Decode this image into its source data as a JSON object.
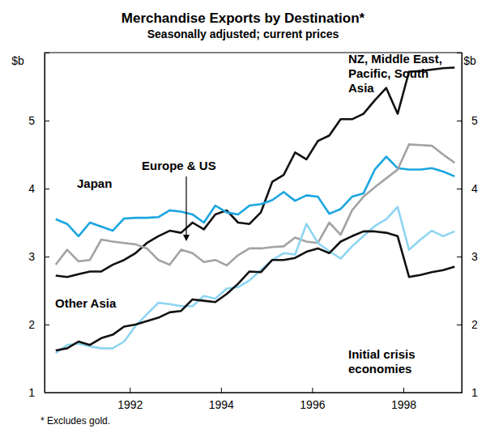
{
  "chart_data": {
    "type": "line",
    "title": "Merchandise Exports by Destination*",
    "subtitle": "Seasonally adjusted; current prices",
    "y_label": "$b",
    "footnote": "* Excludes gold.",
    "x": [
      1990.375,
      1990.625,
      1990.875,
      1991.125,
      1991.375,
      1991.625,
      1991.875,
      1992.125,
      1992.375,
      1992.625,
      1992.875,
      1993.125,
      1993.375,
      1993.625,
      1993.875,
      1994.125,
      1994.375,
      1994.625,
      1994.875,
      1995.125,
      1995.375,
      1995.625,
      1995.875,
      1996.125,
      1996.375,
      1996.625,
      1996.875,
      1997.125,
      1997.375,
      1997.625,
      1997.875,
      1998.125,
      1998.375,
      1998.625,
      1998.875,
      1999.125
    ],
    "xlim": [
      1990.13,
      1999.28
    ],
    "xticks": [
      1992,
      1994,
      1996,
      1998
    ],
    "ylim": [
      1,
      6
    ],
    "yticks": [
      1,
      2,
      3,
      4,
      5
    ],
    "grid": false,
    "series": [
      {
        "name": "NZ, Middle East, Pacific, South Asia",
        "color": "#111111",
        "values": [
          2.72,
          2.7,
          2.74,
          2.78,
          2.78,
          2.88,
          2.95,
          3.05,
          3.2,
          3.3,
          3.38,
          3.35,
          3.5,
          3.4,
          3.62,
          3.68,
          3.5,
          3.48,
          3.65,
          4.1,
          4.2,
          4.53,
          4.43,
          4.7,
          4.78,
          5.02,
          5.02,
          5.1,
          5.3,
          5.48,
          5.1,
          5.72,
          5.73,
          5.75,
          5.77,
          5.78
        ]
      },
      {
        "name": "Japan",
        "color": "#1ba6e0",
        "values": [
          3.55,
          3.48,
          3.3,
          3.5,
          3.44,
          3.38,
          3.56,
          3.57,
          3.57,
          3.58,
          3.68,
          3.66,
          3.62,
          3.5,
          3.75,
          3.65,
          3.62,
          3.75,
          3.77,
          3.83,
          3.95,
          3.82,
          3.9,
          3.88,
          3.63,
          3.7,
          3.88,
          3.93,
          4.28,
          4.47,
          4.3,
          4.28,
          4.28,
          4.3,
          4.25,
          4.18
        ]
      },
      {
        "name": "Europe & US",
        "color": "#a3a3a3",
        "values": [
          2.88,
          3.1,
          2.93,
          2.95,
          3.25,
          3.22,
          3.2,
          3.18,
          3.12,
          2.95,
          2.88,
          3.1,
          3.05,
          2.92,
          2.95,
          2.87,
          3.02,
          3.12,
          3.12,
          3.14,
          3.15,
          3.28,
          3.22,
          3.2,
          3.5,
          3.32,
          3.68,
          3.88,
          4.02,
          4.15,
          4.28,
          4.65,
          4.64,
          4.63,
          4.5,
          4.38
        ]
      },
      {
        "name": "Other Asia",
        "color": "#8ed5f2",
        "values": [
          1.58,
          1.7,
          1.72,
          1.68,
          1.65,
          1.65,
          1.75,
          1.98,
          2.15,
          2.32,
          2.3,
          2.27,
          2.27,
          2.42,
          2.38,
          2.53,
          2.55,
          2.65,
          2.8,
          2.95,
          3.05,
          3.03,
          3.48,
          3.2,
          3.08,
          2.97,
          3.15,
          3.3,
          3.45,
          3.55,
          3.73,
          3.1,
          3.25,
          3.38,
          3.3,
          3.37
        ]
      },
      {
        "name": "Initial crisis economies",
        "color": "#111111",
        "values": [
          1.62,
          1.65,
          1.75,
          1.7,
          1.8,
          1.85,
          1.97,
          2.0,
          2.05,
          2.1,
          2.18,
          2.2,
          2.37,
          2.35,
          2.33,
          2.45,
          2.6,
          2.78,
          2.77,
          2.95,
          2.95,
          2.98,
          3.07,
          3.12,
          3.05,
          3.22,
          3.3,
          3.37,
          3.37,
          3.35,
          3.3,
          2.7,
          2.73,
          2.77,
          2.8,
          2.85
        ]
      }
    ]
  }
}
